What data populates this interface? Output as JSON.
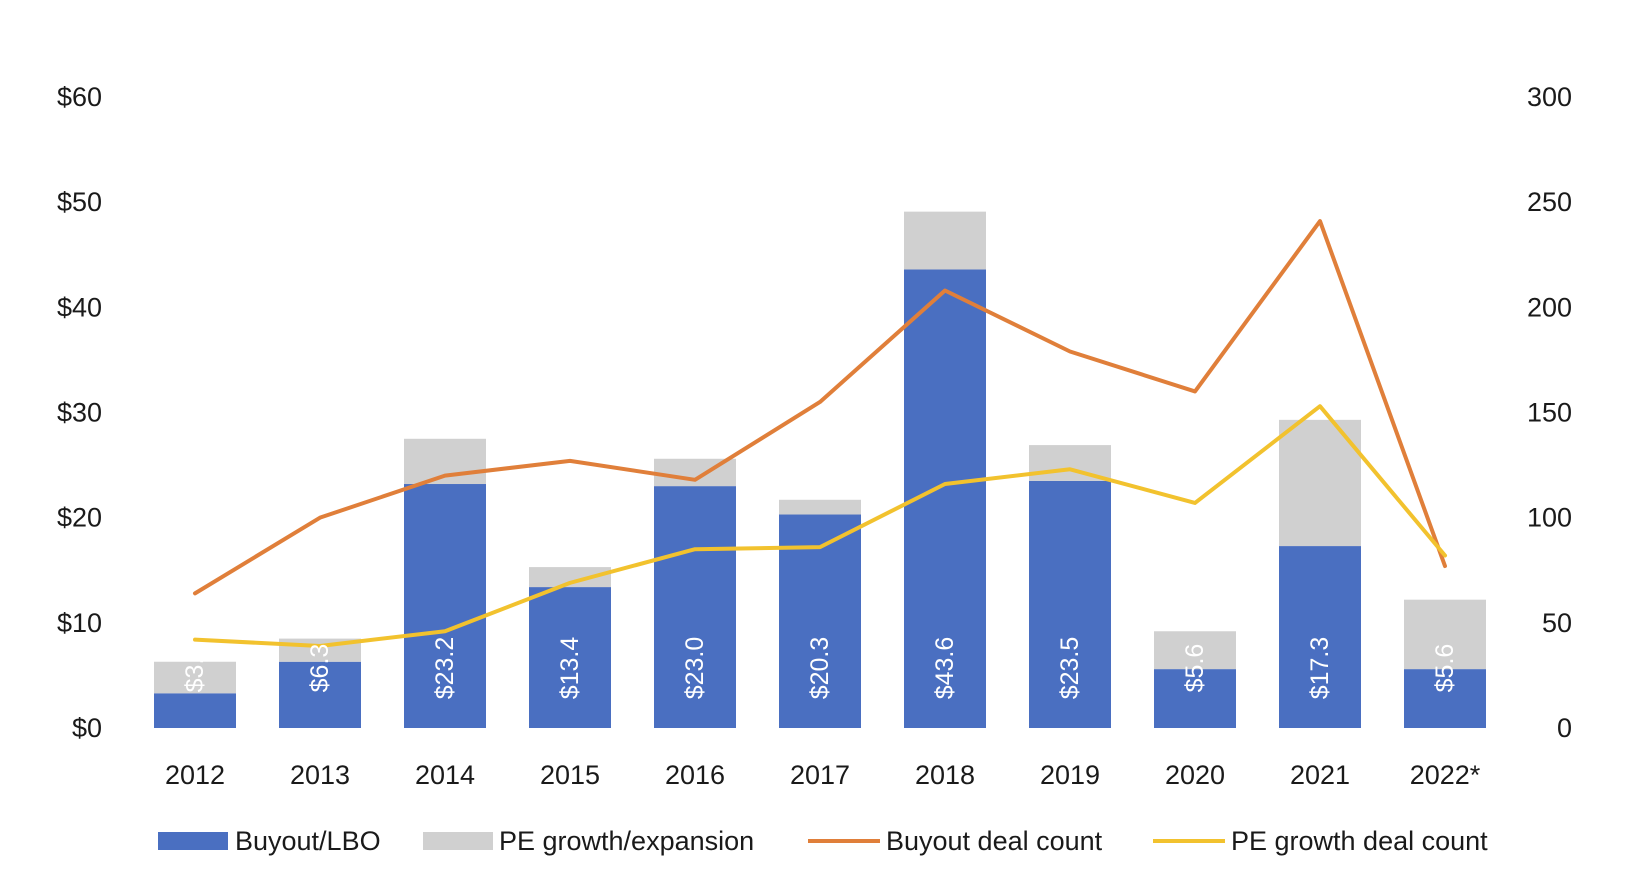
{
  "chart_data": {
    "type": "bar",
    "categories": [
      "2012",
      "2013",
      "2014",
      "2015",
      "2016",
      "2017",
      "2018",
      "2019",
      "2020",
      "2021",
      "2022*"
    ],
    "bar_labels": [
      "$3.3",
      "$6.3",
      "$23.2",
      "$13.4",
      "$23.0",
      "$20.3",
      "$43.6",
      "$23.5",
      "$5.6",
      "$17.3",
      "$5.6"
    ],
    "series": [
      {
        "name": "Buyout/LBO",
        "type": "bar",
        "axis": "left",
        "color": "#4A6FC1",
        "values": [
          3.3,
          6.3,
          23.2,
          13.4,
          23.0,
          20.3,
          43.6,
          23.5,
          5.6,
          17.3,
          5.6
        ]
      },
      {
        "name": "PE growth/expansion",
        "type": "bar",
        "axis": "left",
        "color": "#D0D0D0",
        "values": [
          3.0,
          2.2,
          4.3,
          1.9,
          2.6,
          1.4,
          5.5,
          3.4,
          3.6,
          12.0,
          6.6
        ]
      },
      {
        "name": "Buyout deal count",
        "type": "line",
        "axis": "right",
        "color": "#E07F3A",
        "values": [
          64,
          100,
          120,
          127,
          118,
          155,
          208,
          179,
          160,
          241,
          77
        ]
      },
      {
        "name": "PE growth deal count",
        "type": "line",
        "axis": "right",
        "color": "#F2C22E",
        "values": [
          42,
          39,
          46,
          69,
          85,
          86,
          116,
          123,
          107,
          153,
          82
        ]
      }
    ],
    "y_left": {
      "ticks": [
        "$0",
        "$10",
        "$20",
        "$30",
        "$40",
        "$50",
        "$60"
      ],
      "ylim": [
        0,
        60
      ]
    },
    "y_right": {
      "ticks": [
        "0",
        "50",
        "100",
        "150",
        "200",
        "250",
        "300"
      ],
      "ylim": [
        0,
        300
      ]
    },
    "stacked": true,
    "grid": false,
    "legend_position": "bottom",
    "title": "",
    "xlabel": "",
    "ylabel": ""
  }
}
